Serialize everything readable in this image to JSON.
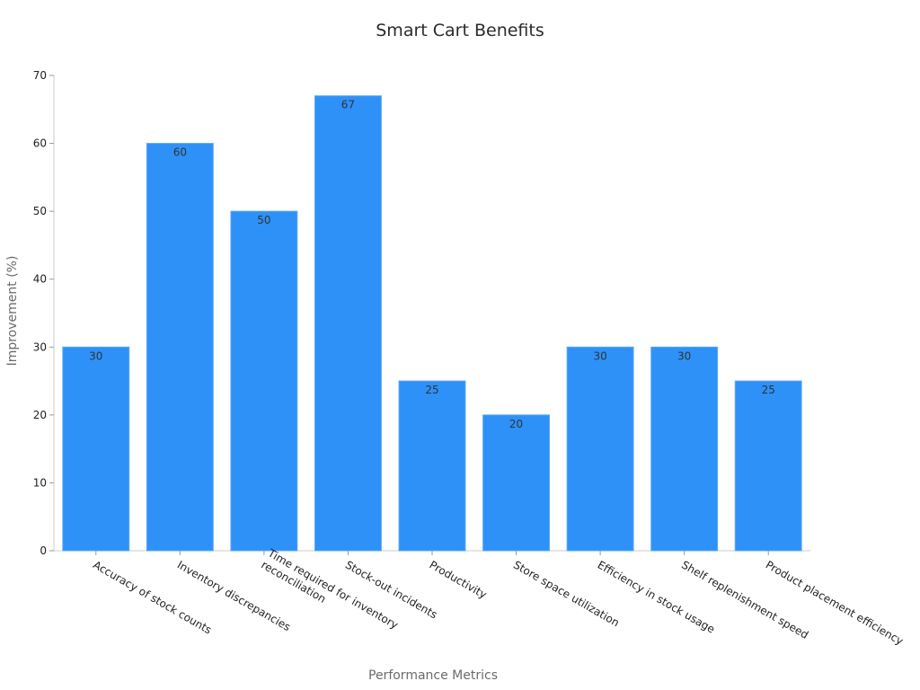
{
  "chart_data": {
    "type": "bar",
    "title": "Smart Cart Benefits",
    "xlabel": "Performance Metrics",
    "ylabel": "Improvement (%)",
    "ylim": [
      0,
      70
    ],
    "yticks": [
      0,
      10,
      20,
      30,
      40,
      50,
      60,
      70
    ],
    "grid": false,
    "bar_color": "#2d91f8",
    "categories": [
      [
        "Accuracy of stock counts"
      ],
      [
        "Inventory discrepancies"
      ],
      [
        "Time required for inventory",
        "reconciliation"
      ],
      [
        "Stock-out incidents"
      ],
      [
        "Productivity"
      ],
      [
        "Store space utilization"
      ],
      [
        "Efficiency in stock usage"
      ],
      [
        "Shelf replenishment speed"
      ],
      [
        "Product placement efficiency"
      ]
    ],
    "values": [
      30,
      60,
      50,
      67,
      25,
      20,
      30,
      30,
      25
    ]
  }
}
